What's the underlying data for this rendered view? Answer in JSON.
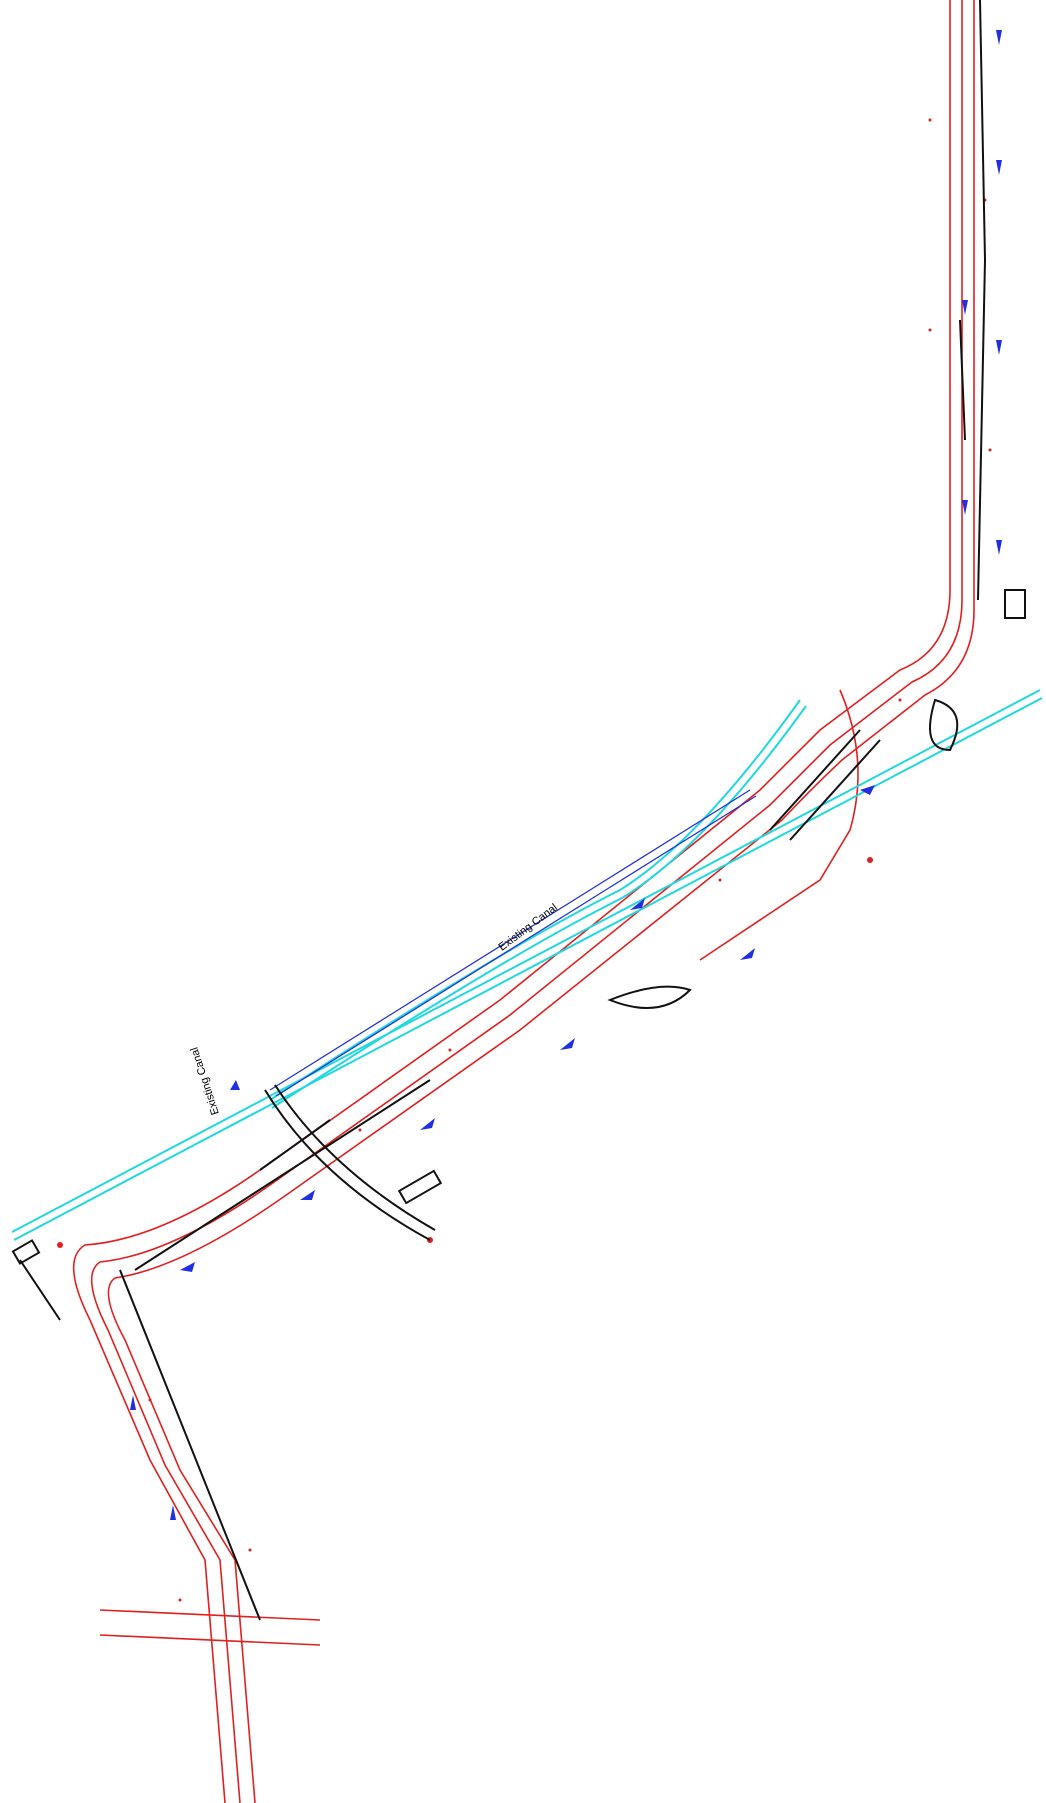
{
  "labels": {
    "canal_main": "Existing Canal",
    "canal_branch": "Existing Canal"
  }
}
